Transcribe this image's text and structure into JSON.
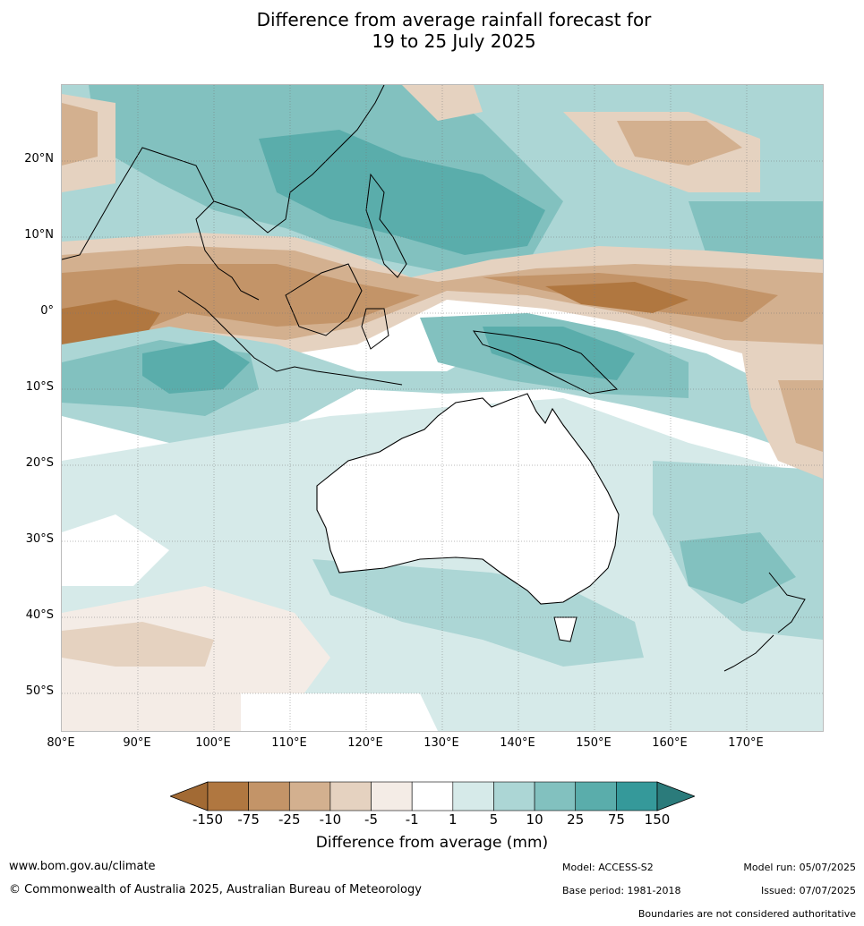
{
  "title_line1": "Difference from average rainfall forecast for",
  "title_line2": "19 to 25 July 2025",
  "map": {
    "lat_labels": [
      "20°N",
      "10°N",
      "0°",
      "10°S",
      "20°S",
      "30°S",
      "40°S",
      "50°S"
    ],
    "lon_labels": [
      "80°E",
      "90°E",
      "100°E",
      "110°E",
      "120°E",
      "130°E",
      "140°E",
      "150°E",
      "160°E",
      "170°E"
    ]
  },
  "colorbar": {
    "title": "Difference from average (mm)",
    "tick_labels": [
      "-150",
      "-75",
      "-25",
      "-10",
      "-5",
      "-1",
      "1",
      "5",
      "10",
      "25",
      "75",
      "150"
    ],
    "colors": [
      "#a26a34",
      "#b07740",
      "#c39468",
      "#d3b08f",
      "#e5d2c0",
      "#f4ece6",
      "#ffffff",
      "#d6eae9",
      "#acd6d5",
      "#82c1bf",
      "#5aadab",
      "#35999a",
      "#2b7b7b"
    ]
  },
  "footer": {
    "website": "www.bom.gov.au/climate",
    "copyright": "© Commonwealth of Australia 2025, Australian Bureau of Meteorology",
    "model": "Model: ACCESS-S2",
    "base_period": "Base period: 1981-2018",
    "model_run": "Model run: 05/07/2025",
    "issued": "Issued: 07/07/2025",
    "disclaimer": "Boundaries are not considered authoritative"
  }
}
